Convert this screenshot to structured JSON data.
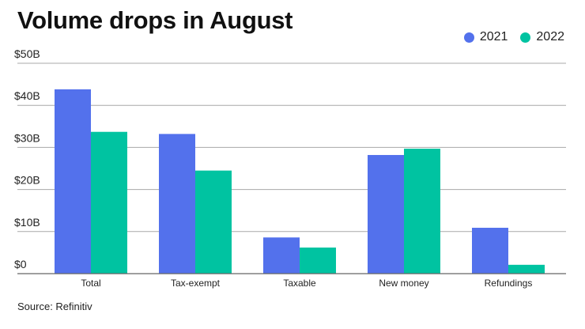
{
  "title": "Volume drops in August",
  "source": "Source: Refinitiv",
  "colors": {
    "series_2021": "#5371EC",
    "series_2022": "#00C3A1",
    "grid": "#a8a8a8",
    "baseline": "#666666",
    "text": "#222222"
  },
  "chart_data": {
    "type": "bar",
    "title": "Volume drops in August",
    "xlabel": "",
    "ylabel": "",
    "categories": [
      "Total",
      "Tax-exempt",
      "Taxable",
      "New money",
      "Refundings"
    ],
    "series": [
      {
        "name": "2021",
        "values": [
          43.8,
          33.2,
          8.6,
          28.2,
          10.9
        ]
      },
      {
        "name": "2022",
        "values": [
          33.7,
          24.5,
          6.2,
          29.7,
          2.1
        ]
      }
    ],
    "ylim": [
      0,
      50
    ],
    "yticks": [
      0,
      10,
      20,
      30,
      40,
      50
    ],
    "ytick_labels": [
      "$0",
      "$10B",
      "$20B",
      "$30B",
      "$40B",
      "$50B"
    ],
    "grid": true,
    "legend_position": "top-right"
  }
}
